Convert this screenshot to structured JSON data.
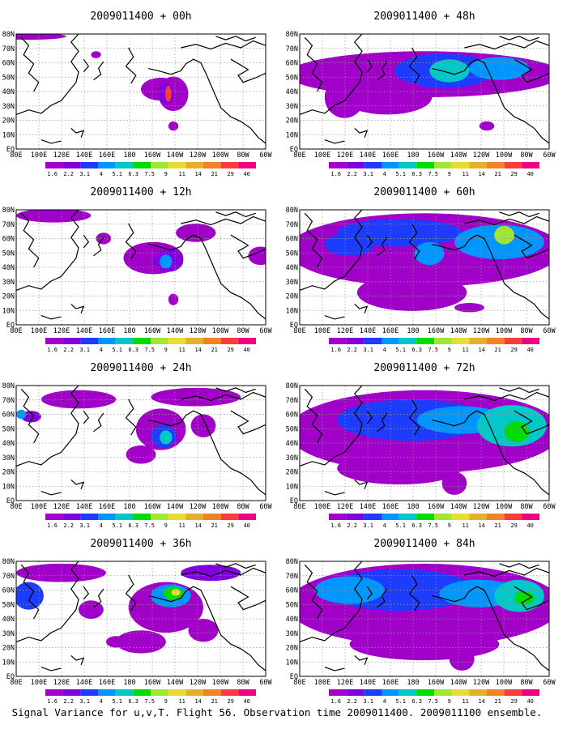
{
  "figure": {
    "caption": "Signal Variance for u,v,T. Flight 56. Observation time 2009011400. 2009011100 ensemble."
  },
  "chart_data": {
    "type": "heatmap",
    "colorbar": {
      "levels": [
        "1.6",
        "2.2",
        "3.1",
        "4",
        "5.1",
        "6.3",
        "7.5",
        "9",
        "11",
        "14",
        "21",
        "29",
        "40"
      ],
      "colors": [
        "#a000c8",
        "#8200dc",
        "#1e3cff",
        "#0096ff",
        "#00c8c8",
        "#00dc00",
        "#a0e632",
        "#e6dc32",
        "#e6af2d",
        "#f08228",
        "#fa3c3c",
        "#f00082"
      ]
    },
    "x_ticks": [
      "80E",
      "100E",
      "120E",
      "140E",
      "160E",
      "180",
      "160W",
      "140W",
      "120W",
      "100W",
      "80W",
      "60W"
    ],
    "y_ticks": [
      "EQ",
      "10N",
      "20N",
      "30N",
      "40N",
      "50N",
      "60N",
      "70N",
      "80N"
    ],
    "xlim": [
      "80E",
      "60W"
    ],
    "ylim": [
      "EQ",
      "80N"
    ],
    "grid": true,
    "panels": [
      {
        "title": "2009011400 + 00h",
        "lead_hours": 0
      },
      {
        "title": "2009011400 + 12h",
        "lead_hours": 12
      },
      {
        "title": "2009011400 + 24h",
        "lead_hours": 24
      },
      {
        "title": "2009011400 + 36h",
        "lead_hours": 36
      },
      {
        "title": "2009011400 + 48h",
        "lead_hours": 48
      },
      {
        "title": "2009011400 + 60h",
        "lead_hours": 60
      },
      {
        "title": "2009011400 + 72h",
        "lead_hours": 72
      },
      {
        "title": "2009011400 + 84h",
        "lead_hours": 84
      }
    ]
  }
}
